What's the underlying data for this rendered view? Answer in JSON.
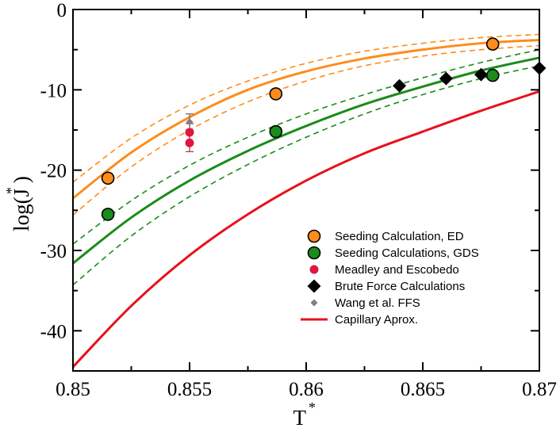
{
  "chart_data": {
    "type": "scatter",
    "title": "",
    "xlabel": "T",
    "xlabel_superscript": "*",
    "ylabel": "log(J )",
    "ylabel_superscript": "*",
    "xlim": [
      0.85,
      0.87
    ],
    "ylim": [
      -45,
      0
    ],
    "xticks": [
      0.85,
      0.855,
      0.86,
      0.865,
      0.87
    ],
    "xtick_labels": [
      "0.85",
      "0.855",
      "0.86",
      "0.865",
      "0.87"
    ],
    "yticks": [
      0,
      -10,
      -20,
      -30,
      -40
    ],
    "ytick_labels": [
      "0",
      "-10",
      "-20",
      "-30",
      "-40"
    ],
    "grid": false,
    "legend_position": "bottom-right",
    "curves": [
      {
        "name": "ED fit",
        "color": "#ff8c1a",
        "dash": false,
        "width": 3,
        "x": [
          0.85,
          0.8525,
          0.855,
          0.8575,
          0.86,
          0.8625,
          0.865,
          0.8675,
          0.87
        ],
        "y": [
          -23.5,
          -17.8,
          -13.4,
          -10.0,
          -7.7,
          -6.1,
          -5.0,
          -4.2,
          -3.8
        ]
      },
      {
        "name": "ED upper",
        "color": "#ff8c1a",
        "dash": true,
        "width": 1.6,
        "x": [
          0.85,
          0.8525,
          0.855,
          0.8575,
          0.86,
          0.8625,
          0.865,
          0.8675,
          0.87
        ],
        "y": [
          -21.5,
          -16.0,
          -11.9,
          -8.9,
          -6.7,
          -5.2,
          -4.2,
          -3.5,
          -3.1
        ]
      },
      {
        "name": "ED lower",
        "color": "#ff8c1a",
        "dash": true,
        "width": 1.6,
        "x": [
          0.85,
          0.8525,
          0.855,
          0.8575,
          0.86,
          0.8625,
          0.865,
          0.8675,
          0.87
        ],
        "y": [
          -25.6,
          -19.6,
          -15.0,
          -11.5,
          -8.9,
          -7.0,
          -5.8,
          -5.0,
          -4.5
        ]
      },
      {
        "name": "GDS fit",
        "color": "#1a8c1a",
        "dash": false,
        "width": 3,
        "x": [
          0.85,
          0.8525,
          0.855,
          0.8575,
          0.86,
          0.8625,
          0.865,
          0.8675,
          0.87
        ],
        "y": [
          -31.6,
          -25.9,
          -21.3,
          -17.6,
          -14.5,
          -11.8,
          -9.6,
          -7.6,
          -6.0
        ]
      },
      {
        "name": "GDS upper",
        "color": "#1a8c1a",
        "dash": true,
        "width": 1.6,
        "x": [
          0.85,
          0.8525,
          0.855,
          0.8575,
          0.86,
          0.8625,
          0.865,
          0.8675,
          0.87
        ],
        "y": [
          -29.2,
          -23.8,
          -19.4,
          -15.9,
          -13.0,
          -10.6,
          -8.5,
          -6.6,
          -5.0
        ]
      },
      {
        "name": "GDS lower",
        "color": "#1a8c1a",
        "dash": true,
        "width": 1.6,
        "x": [
          0.85,
          0.8525,
          0.855,
          0.8575,
          0.86,
          0.8625,
          0.865,
          0.8675,
          0.87
        ],
        "y": [
          -34.3,
          -28.2,
          -23.3,
          -19.3,
          -15.9,
          -13.0,
          -10.6,
          -8.6,
          -7.0
        ]
      },
      {
        "name": "Capillary Aprox.",
        "color": "#e8111b",
        "dash": false,
        "width": 3,
        "x": [
          0.85,
          0.8525,
          0.855,
          0.8575,
          0.86,
          0.8625,
          0.865,
          0.8675,
          0.87
        ],
        "y": [
          -44.5,
          -36.9,
          -30.6,
          -25.5,
          -21.3,
          -17.9,
          -15.2,
          -12.6,
          -10.2
        ]
      }
    ],
    "series": [
      {
        "name": "Seeding Calculation, ED",
        "marker": "circle",
        "color": "#ff8c1a",
        "x": [
          0.8515,
          0.8587,
          0.868
        ],
        "y": [
          -21.0,
          -10.5,
          -4.3
        ]
      },
      {
        "name": "Seeding Calculations, GDS",
        "marker": "circle",
        "color": "#1a8c1a",
        "x": [
          0.8515,
          0.8587,
          0.868
        ],
        "y": [
          -25.5,
          -15.2,
          -8.2
        ]
      },
      {
        "name": "Meadley and Escobedo",
        "marker": "small-circle",
        "color": "#e01640",
        "x": [
          0.855,
          0.855
        ],
        "y": [
          -15.3,
          -16.6
        ],
        "yerr": [
          1.1,
          1.1
        ]
      },
      {
        "name": "Brute Force Calculations",
        "marker": "diamond",
        "color": "#000000",
        "x": [
          0.864,
          0.866,
          0.8675,
          0.87
        ],
        "y": [
          -9.5,
          -8.6,
          -8.1,
          -7.3
        ]
      },
      {
        "name": "Wang et al. FFS",
        "marker": "small-diamond",
        "color": "#7f7f7f",
        "x": [
          0.855
        ],
        "y": [
          -14.0
        ],
        "yerr": [
          1.0
        ]
      }
    ],
    "legend": [
      {
        "label": "Seeding Calculation, ED",
        "marker": "circle",
        "color": "#ff8c1a"
      },
      {
        "label": "Seeding Calculations, GDS",
        "marker": "circle",
        "color": "#1a8c1a"
      },
      {
        "label": "Meadley and Escobedo",
        "marker": "small-circle",
        "color": "#e01640"
      },
      {
        "label": "Brute Force Calculations",
        "marker": "diamond",
        "color": "#000000"
      },
      {
        "label": "Wang et al. FFS",
        "marker": "small-diamond",
        "color": "#7f7f7f"
      },
      {
        "label": "Capillary Aprox.",
        "marker": "line",
        "color": "#e8111b"
      }
    ]
  }
}
